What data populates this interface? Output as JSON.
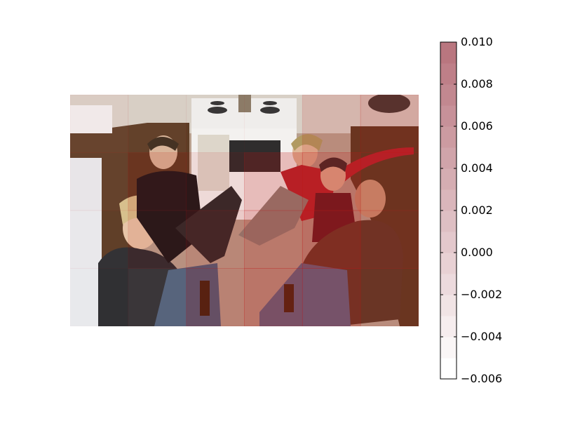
{
  "image": {
    "description_scene": "kitchen",
    "overlay": {
      "type": "heatmap-attribution",
      "cells": [
        {
          "r": 0,
          "c": 0,
          "v": 0.0025
        },
        {
          "r": 0,
          "c": 1,
          "v": 0.0015
        },
        {
          "r": 0,
          "c": 2,
          "v": 0.0005
        },
        {
          "r": 0,
          "c": 3,
          "v": 0.0005
        },
        {
          "r": 0,
          "c": 4,
          "v": 0.004
        },
        {
          "r": 0,
          "c": 5,
          "v": 0.006
        },
        {
          "r": 1,
          "c": 0,
          "v": 0.002
        },
        {
          "r": 1,
          "c": 1,
          "v": 0.004
        },
        {
          "r": 1,
          "c": 2,
          "v": 0.003
        },
        {
          "r": 1,
          "c": 3,
          "v": 0.007
        },
        {
          "r": 1,
          "c": 4,
          "v": 0.009
        },
        {
          "r": 1,
          "c": 5,
          "v": 0.005
        },
        {
          "r": 2,
          "c": 0,
          "v": 0.001
        },
        {
          "r": 2,
          "c": 1,
          "v": 0.003
        },
        {
          "r": 2,
          "c": 2,
          "v": 0.005
        },
        {
          "r": 2,
          "c": 3,
          "v": 0.008
        },
        {
          "r": 2,
          "c": 4,
          "v": 0.01
        },
        {
          "r": 2,
          "c": 5,
          "v": 0.006
        },
        {
          "r": 3,
          "c": 0,
          "v": 0.0005
        },
        {
          "r": 3,
          "c": 1,
          "v": 0.002
        },
        {
          "r": 3,
          "c": 2,
          "v": 0.006
        },
        {
          "r": 3,
          "c": 3,
          "v": 0.009
        },
        {
          "r": 3,
          "c": 4,
          "v": 0.008
        },
        {
          "r": 3,
          "c": 5,
          "v": 0.004
        }
      ]
    }
  },
  "colorbar": {
    "min": -0.006,
    "max": 0.01,
    "ticks": [
      "0.010",
      "0.008",
      "0.006",
      "0.004",
      "0.002",
      "0.000",
      "−0.002",
      "−0.004",
      "−0.006"
    ],
    "color_low": "#ffffff",
    "color_high": "#b9767f",
    "levels": 16
  }
}
